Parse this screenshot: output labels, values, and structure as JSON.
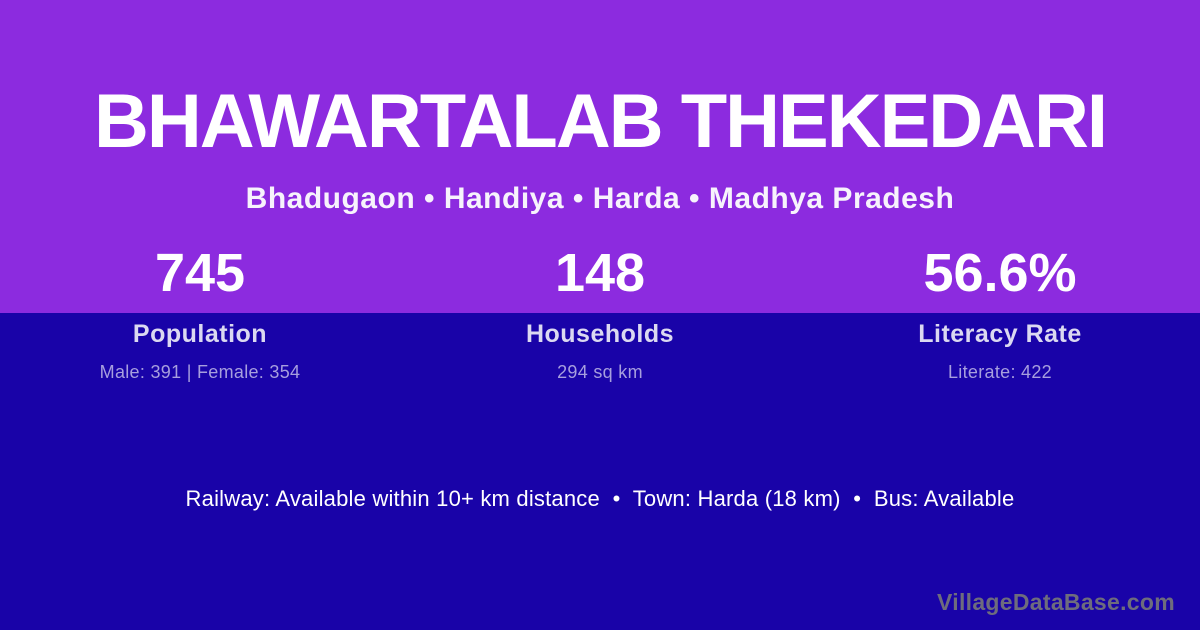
{
  "colors": {
    "top_background": "#8C2BDF",
    "bottom_background": "#1903A8",
    "title_text": "#FFFFFF",
    "stat_label_text": "#DBD9F1",
    "stat_detail_text": "#A79FDE",
    "watermark_text": "#6E6C7D"
  },
  "header": {
    "title": "BHAWARTALAB THEKEDARI",
    "location": "Bhadugaon • Handiya • Harda • Madhya Pradesh"
  },
  "stats": [
    {
      "value": "745",
      "label": "Population",
      "detail": "Male: 391 | Female: 354"
    },
    {
      "value": "148",
      "label": "Households",
      "detail": "294 sq km"
    },
    {
      "value": "56.6%",
      "label": "Literacy Rate",
      "detail": "Literate: 422"
    }
  ],
  "footer": {
    "amenities": "Railway: Available within 10+ km distance  •  Town: Harda (18 km)  •  Bus: Available",
    "watermark": "VillageDataBase.com"
  }
}
